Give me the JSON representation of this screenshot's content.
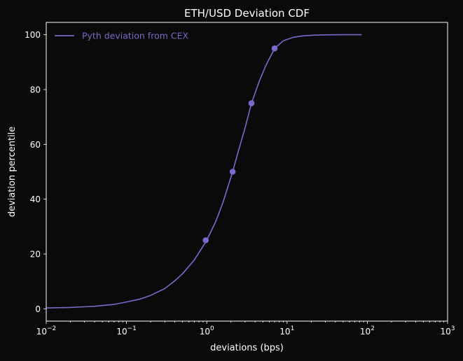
{
  "chart_data": {
    "type": "line",
    "title": "ETH/USD Deviation CDF",
    "xlabel": "deviations (bps)",
    "ylabel": "deviation percentile",
    "x_scale": "log",
    "xlim": [
      0.01,
      1000
    ],
    "ylim": [
      -4.5,
      104.5
    ],
    "x_ticks": [
      {
        "value": 0.01,
        "base": "10",
        "exp": "−2"
      },
      {
        "value": 0.1,
        "base": "10",
        "exp": "−1"
      },
      {
        "value": 1,
        "base": "10",
        "exp": "0"
      },
      {
        "value": 10,
        "base": "10",
        "exp": "1"
      },
      {
        "value": 100,
        "base": "10",
        "exp": "2"
      },
      {
        "value": 1000,
        "base": "10",
        "exp": "3"
      }
    ],
    "y_ticks": [
      0,
      20,
      40,
      60,
      80,
      100
    ],
    "grid": false,
    "legend_position": "top-left",
    "series": [
      {
        "name": "Pyth deviation from CEX",
        "color": "#7b68c8",
        "x": [
          0.01,
          0.02,
          0.04,
          0.07,
          0.1,
          0.15,
          0.2,
          0.3,
          0.4,
          0.5,
          0.7,
          1.0,
          1.3,
          1.6,
          2.1,
          2.5,
          3.0,
          3.6,
          4.5,
          5.5,
          7.0,
          9.0,
          12,
          16,
          22,
          30,
          50,
          85
        ],
        "y": [
          0.3,
          0.5,
          0.9,
          1.6,
          2.5,
          3.6,
          4.9,
          7.4,
          10.2,
          12.8,
          17.8,
          25,
          32,
          39,
          50,
          58,
          66,
          75,
          83,
          89,
          95,
          97.8,
          99.1,
          99.6,
          99.85,
          99.95,
          100,
          100
        ]
      }
    ],
    "markers": {
      "series": "Pyth deviation from CEX",
      "x": [
        0.97,
        2.1,
        3.6,
        7.0
      ],
      "y": [
        25,
        50,
        75,
        95
      ]
    }
  }
}
